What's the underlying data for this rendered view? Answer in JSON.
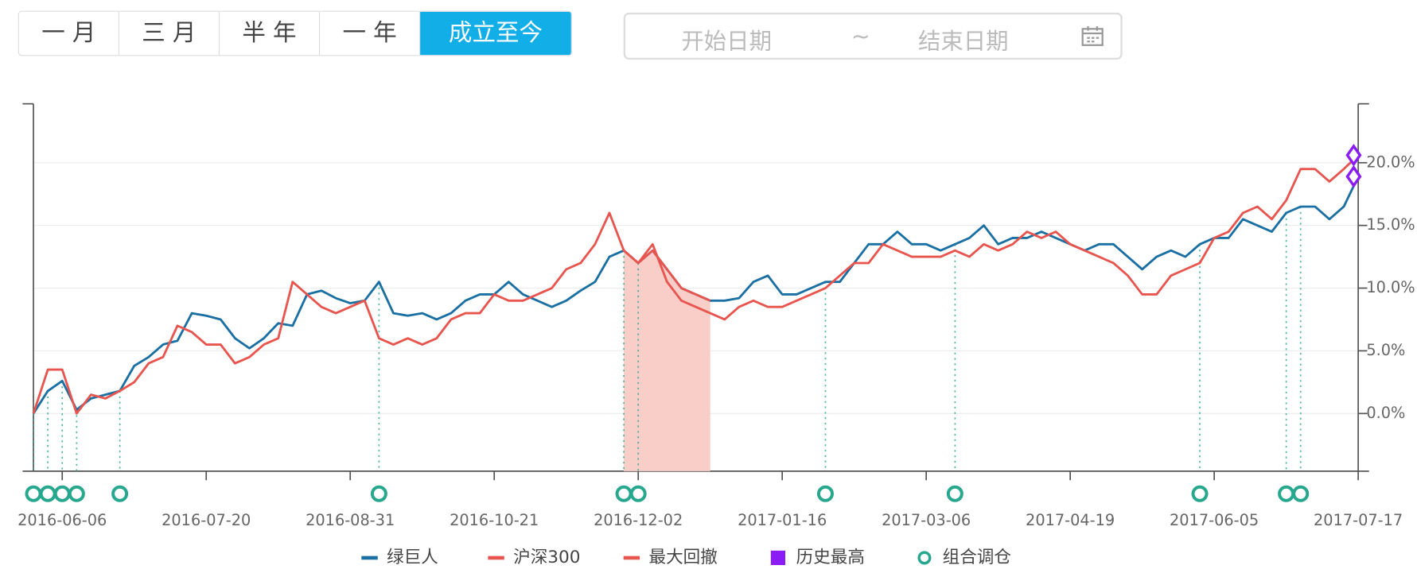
{
  "controls": {
    "buttons": [
      "一月",
      "三月",
      "半年",
      "一年",
      "成立至今"
    ],
    "active": 4,
    "date_range": {
      "start": "开始日期",
      "separator": "~",
      "end": "结束日期"
    }
  },
  "chart_data": {
    "type": "line",
    "categories": [
      null,
      null,
      "2016-06-06",
      null,
      null,
      null,
      null,
      null,
      null,
      null,
      null,
      null,
      "2016-07-20",
      null,
      null,
      null,
      null,
      null,
      null,
      null,
      null,
      null,
      "2016-08-31",
      null,
      null,
      null,
      null,
      null,
      null,
      null,
      null,
      null,
      "2016-10-21",
      null,
      null,
      null,
      null,
      null,
      null,
      null,
      null,
      null,
      "2016-12-02",
      null,
      null,
      null,
      null,
      null,
      null,
      null,
      null,
      null,
      "2017-01-16",
      null,
      null,
      null,
      null,
      null,
      null,
      null,
      null,
      null,
      "2017-03-06",
      null,
      null,
      null,
      null,
      null,
      null,
      null,
      null,
      null,
      "2017-04-19",
      null,
      null,
      null,
      null,
      null,
      null,
      null,
      null,
      null,
      "2017-06-05",
      null,
      null,
      null,
      null,
      null,
      null,
      null,
      null,
      null,
      "2017-07-17"
    ],
    "ylim": [
      -4.6,
      24.7
    ],
    "yticks": [
      {
        "value": 0,
        "label": "0.0%"
      },
      {
        "value": 5,
        "label": "5.0%"
      },
      {
        "value": 10,
        "label": "10.0%"
      },
      {
        "value": 15,
        "label": "15.0%"
      },
      {
        "value": 20,
        "label": "20.0%"
      }
    ],
    "grid": true,
    "series": [
      {
        "name": "绿巨人",
        "type": "line",
        "color": "#1a6fa3",
        "values": [
          0,
          1.8,
          2.6,
          0.3,
          1.2,
          1.5,
          1.8,
          3.8,
          4.5,
          5.5,
          5.8,
          8.0,
          7.8,
          7.5,
          6.0,
          5.2,
          6.0,
          7.2,
          7.0,
          9.5,
          9.8,
          9.2,
          8.8,
          9.0,
          10.5,
          8.0,
          7.8,
          8.0,
          7.5,
          8.0,
          9.0,
          9.5,
          9.5,
          10.5,
          9.5,
          9.0,
          8.5,
          9.0,
          9.8,
          10.5,
          12.5,
          13.0,
          12.0,
          13.0,
          11.5,
          10.0,
          9.5,
          9.0,
          9.0,
          9.2,
          10.5,
          11.0,
          9.5,
          9.5,
          10.0,
          10.5,
          10.5,
          12.0,
          13.5,
          13.5,
          14.5,
          13.5,
          13.5,
          13.0,
          13.5,
          14.0,
          15.0,
          13.5,
          14.0,
          14.0,
          14.5,
          14.0,
          13.5,
          13.0,
          13.5,
          13.5,
          12.5,
          11.5,
          12.5,
          13.0,
          12.5,
          13.5,
          14.0,
          14.0,
          15.5,
          15.0,
          14.5,
          16.0,
          16.5,
          16.5,
          15.5,
          16.5,
          18.9
        ]
      },
      {
        "name": "沪深300",
        "type": "line",
        "color": "#e8554e",
        "values": [
          0,
          3.5,
          3.5,
          0.0,
          1.5,
          1.2,
          1.8,
          2.5,
          4.0,
          4.5,
          7.0,
          6.5,
          5.5,
          5.5,
          4.0,
          4.5,
          5.5,
          6.0,
          10.5,
          9.5,
          8.5,
          8.0,
          8.5,
          9.0,
          6.0,
          5.5,
          6.0,
          5.5,
          6.0,
          7.5,
          8.0,
          8.0,
          9.5,
          9.0,
          9.0,
          9.5,
          10.0,
          11.5,
          12.0,
          13.5,
          16.0,
          13.0,
          12.0,
          13.5,
          10.5,
          9.0,
          8.5,
          8.0,
          7.5,
          8.5,
          9.0,
          8.5,
          8.5,
          9.0,
          9.5,
          10.0,
          11.0,
          12.0,
          12.0,
          13.5,
          13.0,
          12.5,
          12.5,
          12.5,
          13.0,
          12.5,
          13.5,
          13.0,
          13.5,
          14.5,
          14.0,
          14.5,
          13.5,
          13.0,
          12.5,
          12.0,
          11.0,
          9.5,
          9.5,
          11.0,
          11.5,
          12.0,
          14.0,
          14.5,
          16.0,
          16.5,
          15.5,
          17.0,
          19.5,
          19.5,
          18.5,
          19.5,
          20.6
        ]
      },
      {
        "name": "最大回撤",
        "type": "area",
        "color": "#e8574f",
        "fill": "#f9cdc8",
        "values": [
          null,
          null,
          null,
          null,
          null,
          null,
          null,
          null,
          null,
          null,
          null,
          null,
          null,
          null,
          null,
          null,
          null,
          null,
          null,
          null,
          null,
          null,
          null,
          null,
          null,
          null,
          null,
          null,
          null,
          null,
          null,
          null,
          null,
          null,
          null,
          null,
          null,
          null,
          null,
          null,
          null,
          13.0,
          12.0,
          13.0,
          11.5,
          10.0,
          9.5,
          9.0,
          null,
          null,
          null,
          null,
          null,
          null,
          null,
          null,
          null,
          null,
          null,
          null,
          null,
          null,
          null,
          null,
          null,
          null,
          null,
          null,
          null,
          null,
          null,
          null,
          null,
          null,
          null,
          null,
          null,
          null,
          null,
          null,
          null,
          null,
          null,
          null,
          null,
          null,
          null,
          null,
          null,
          null,
          null,
          null,
          null
        ]
      },
      {
        "name": "历史最高",
        "type": "high",
        "color": "#8b1cf5",
        "points": [
          {
            "x": "2017-07-17",
            "value": 18.9
          },
          {
            "x": "2017-07-17",
            "value": 20.6
          }
        ]
      },
      {
        "name": "组合调仓",
        "type": "rebalance",
        "color": "#27a88e",
        "values": [
          0,
          1.8,
          2.6,
          0.3,
          null,
          null,
          1.8,
          null,
          null,
          null,
          null,
          null,
          null,
          null,
          null,
          null,
          null,
          null,
          null,
          null,
          null,
          null,
          null,
          null,
          10.5,
          null,
          null,
          null,
          null,
          null,
          null,
          null,
          null,
          null,
          null,
          null,
          null,
          null,
          null,
          null,
          null,
          13.0,
          12.0,
          null,
          null,
          null,
          null,
          null,
          null,
          null,
          null,
          null,
          null,
          null,
          null,
          10.5,
          null,
          null,
          null,
          null,
          null,
          null,
          null,
          null,
          13.5,
          null,
          null,
          null,
          null,
          null,
          null,
          null,
          null,
          null,
          null,
          null,
          null,
          null,
          null,
          null,
          null,
          13.5,
          null,
          null,
          null,
          null,
          null,
          16.0,
          16.5,
          null,
          null,
          null,
          null
        ]
      }
    ]
  }
}
